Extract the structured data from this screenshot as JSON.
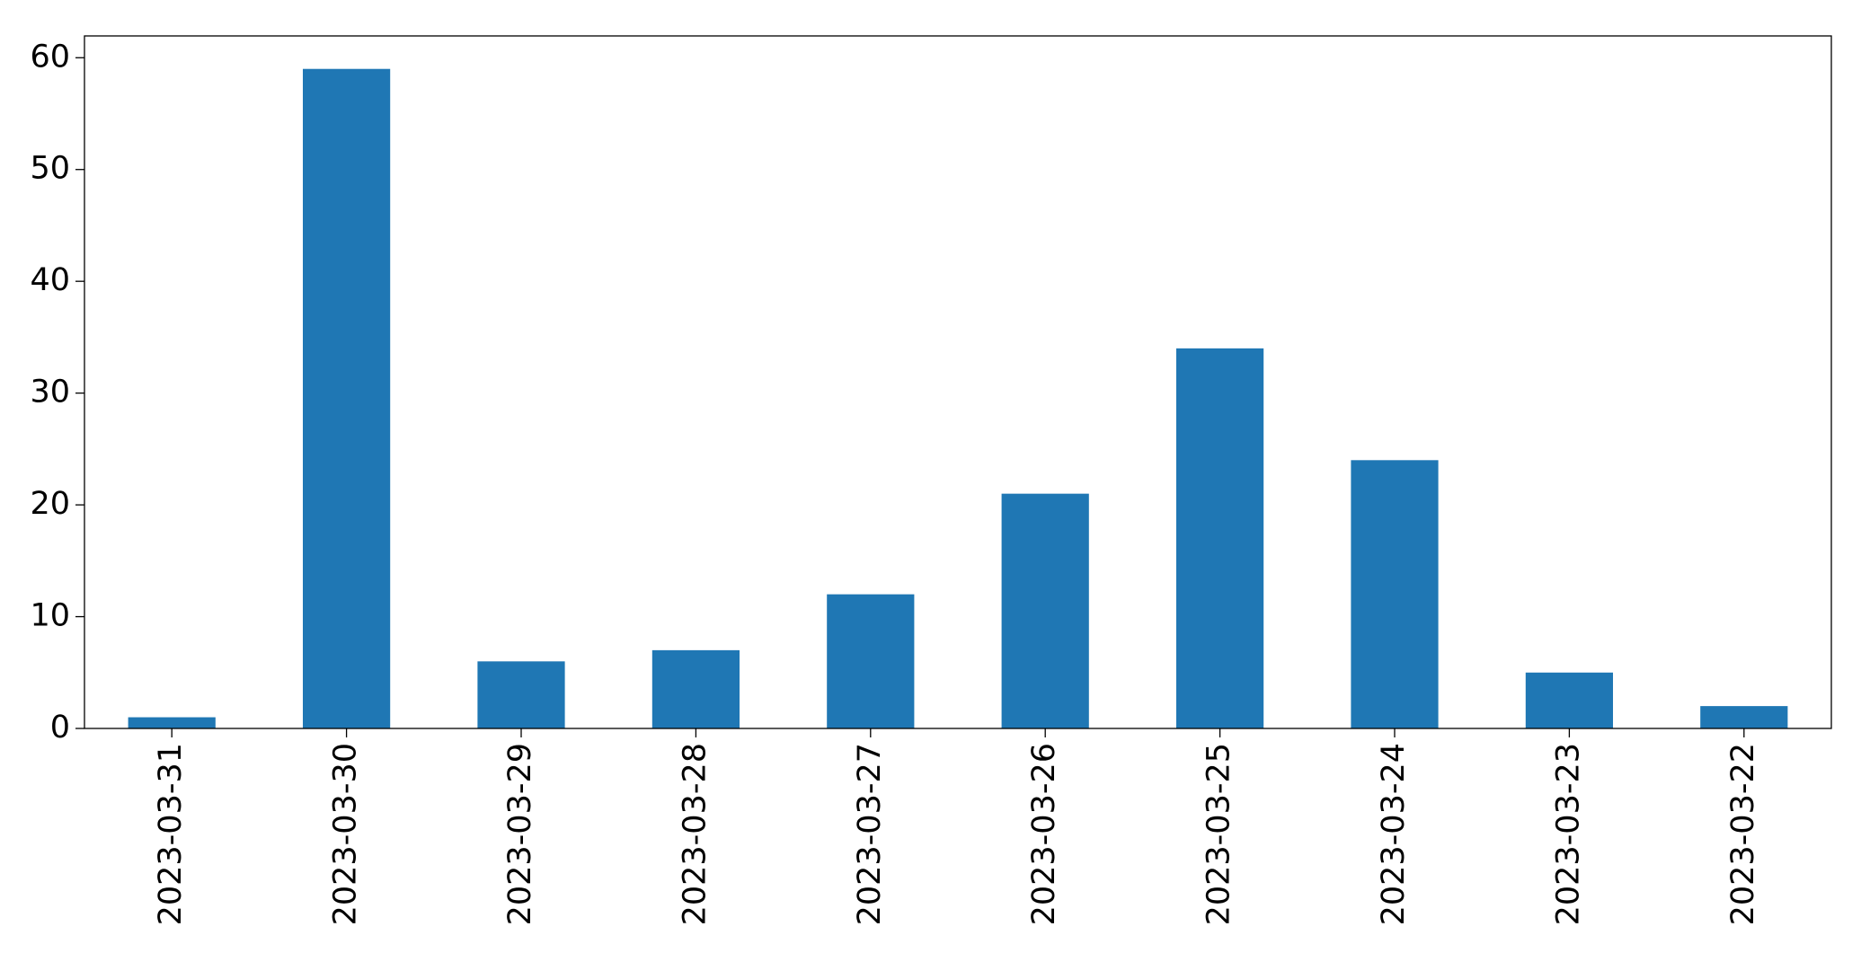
{
  "chart_data": {
    "type": "bar",
    "categories": [
      "2023-03-31",
      "2023-03-30",
      "2023-03-29",
      "2023-03-28",
      "2023-03-27",
      "2023-03-26",
      "2023-03-25",
      "2023-03-24",
      "2023-03-23",
      "2023-03-22"
    ],
    "values": [
      1,
      59,
      6,
      7,
      12,
      21,
      34,
      24,
      5,
      2
    ],
    "color": "#1f77b4",
    "ylim": [
      0,
      61.95
    ],
    "yticks": [
      0,
      10,
      20,
      30,
      40,
      50,
      60
    ],
    "grid": false
  }
}
